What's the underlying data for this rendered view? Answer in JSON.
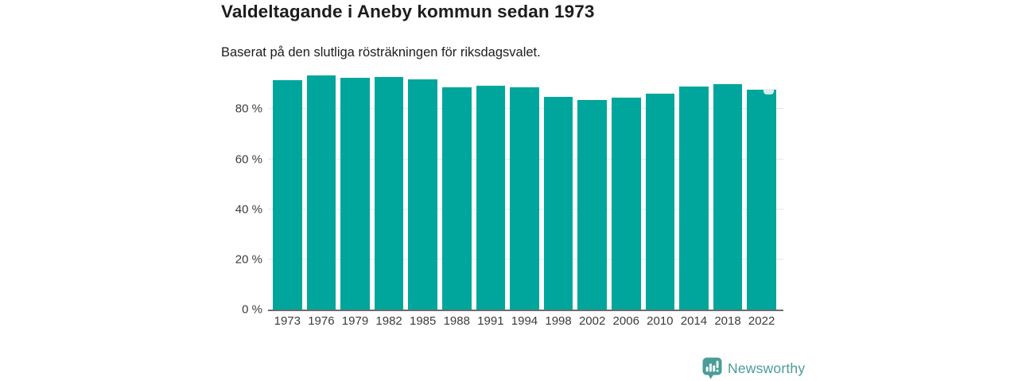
{
  "title": "Valdeltagande i Aneby kommun sedan 1973",
  "subtitle": "Baserat på den slutliga rösträkningen för riksdagsvalet.",
  "logo": {
    "text": "Newsworthy",
    "icon": "newsworthy-bubble-barchart-icon"
  },
  "colors": {
    "bar": "#00a69c",
    "latest_marker": "#d8efec",
    "gridline": "#e4e4e4",
    "axis_line": "#6b6b6b",
    "text": "#1d1d1d",
    "tick_label": "#3c3c3c",
    "logo": "#4a9c98",
    "background": "#ffffff"
  },
  "chart_data": {
    "type": "bar",
    "title": "Valdeltagande i Aneby kommun sedan 1973",
    "subtitle": "Baserat på den slutliga rösträkningen för riksdagsvalet.",
    "categories": [
      "1973",
      "1976",
      "1979",
      "1982",
      "1985",
      "1988",
      "1991",
      "1994",
      "1998",
      "2002",
      "2006",
      "2010",
      "2014",
      "2018",
      "2022"
    ],
    "values": [
      91.4,
      93.5,
      92.5,
      92.9,
      91.7,
      88.6,
      89.2,
      88.8,
      84.8,
      83.6,
      84.4,
      86.0,
      89.0,
      89.9,
      87.8
    ],
    "unit": "%",
    "xlabel": "",
    "ylabel": "",
    "ylim": [
      0,
      95
    ],
    "yticks": [
      {
        "value": 0,
        "label": "0 %"
      },
      {
        "value": 20,
        "label": "20 %"
      },
      {
        "value": 40,
        "label": "40 %"
      },
      {
        "value": 60,
        "label": "60 %"
      },
      {
        "value": 80,
        "label": "80 %"
      }
    ],
    "grid": "horizontal",
    "legend": "none",
    "bar_color": "#00a69c",
    "latest_bar_marker": {
      "category": "2022",
      "color": "#d8efec"
    }
  }
}
